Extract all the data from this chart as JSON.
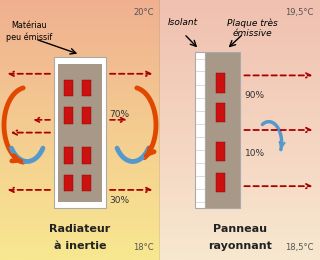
{
  "left_panel": {
    "bg_top": "#f0b090",
    "bg_bottom": "#f8e890",
    "temp_top": "20°C",
    "temp_bottom": "18°C",
    "label_material": "Matériau\npeu émissif",
    "title1": "Radiateur",
    "title2": "à inertie",
    "pct_right": "70%",
    "pct_bottom_r": "30%"
  },
  "right_panel": {
    "bg_top": "#f0c0b0",
    "bg_bottom": "#f8e8d0",
    "temp_top": "19,5°C",
    "temp_bottom": "18,5°C",
    "label_isolant": "Isolant",
    "label_plaque": "Plaque très\némissive",
    "title1": "Panneau",
    "title2": "rayonnant",
    "pct_top": "90%",
    "pct_mid": "10%"
  },
  "orange": "#e04800",
  "blue": "#5599cc",
  "red": "#cc1111",
  "dark_red": "#aa0000",
  "gray_fill": "#a89888",
  "white": "#ffffff",
  "black": "#111111",
  "temp_color": "#555555",
  "title_color": "#222222"
}
